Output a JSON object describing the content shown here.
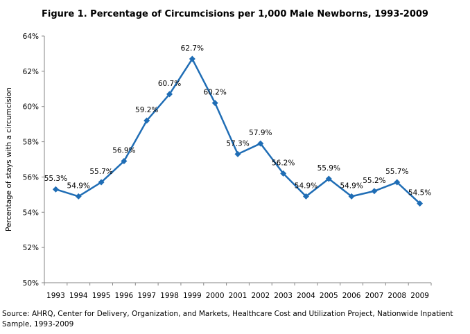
{
  "chart_data": {
    "type": "line",
    "title": "Figure 1. Percentage of Circumcisions per 1,000 Male Newborns, 1993-2009",
    "xlabel": "",
    "ylabel": "Percentage of stays with a circumcision",
    "categories": [
      "1993",
      "1994",
      "1995",
      "1996",
      "1997",
      "1998",
      "1999",
      "2000",
      "2001",
      "2002",
      "2003",
      "2004",
      "2005",
      "2006",
      "2007",
      "2008",
      "2009"
    ],
    "values": [
      55.3,
      54.9,
      55.7,
      56.9,
      59.2,
      60.7,
      62.7,
      60.2,
      57.3,
      57.9,
      56.2,
      54.9,
      55.9,
      54.9,
      55.2,
      55.7,
      54.5
    ],
    "data_labels": [
      "55.3%",
      "54.9%",
      "55.7%",
      "56.9%",
      "59.2%",
      "60.7%",
      "62.7%",
      "60.2%",
      "57.3%",
      "57.9%",
      "56.2%",
      "54.9%",
      "55.9%",
      "54.9%",
      "55.2%",
      "55.7%",
      "54.5%"
    ],
    "ylim": [
      50,
      64
    ],
    "yticks": [
      "50%",
      "52%",
      "54%",
      "56%",
      "58%",
      "60%",
      "62%",
      "64%"
    ],
    "grid": false,
    "legend": "none",
    "line_color": "#1F6DB5",
    "marker": "diamond"
  },
  "source": "Source: AHRQ, Center for Delivery, Organization, and Markets, Healthcare Cost and Utilization Project, Nationwide Inpatient Sample, 1993-2009"
}
